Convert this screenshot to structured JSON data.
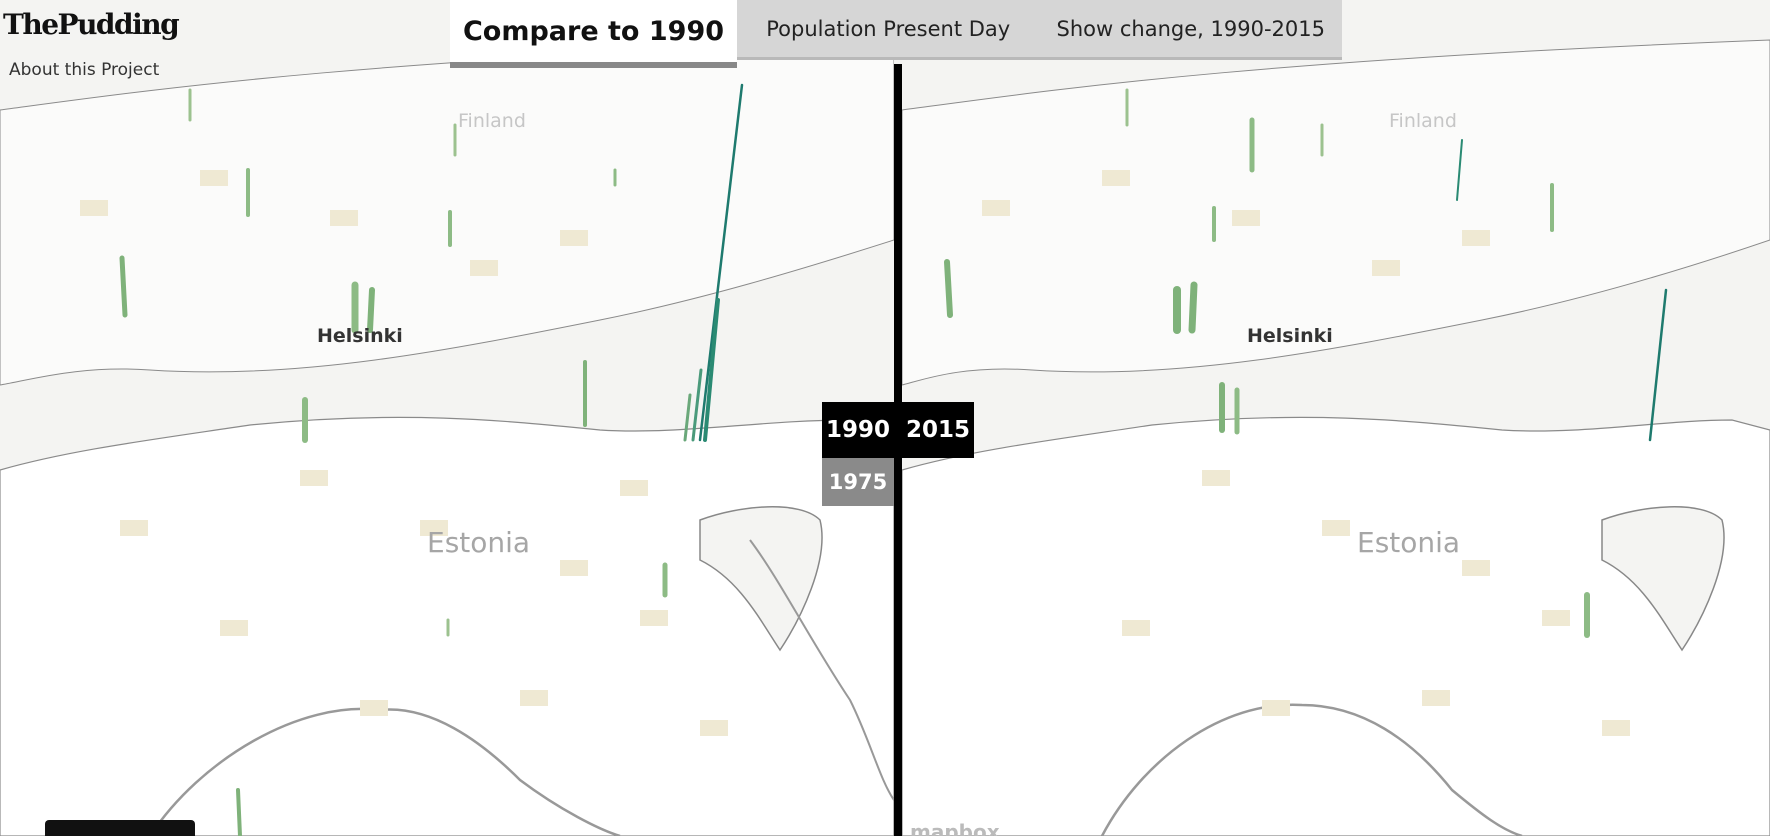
{
  "brand": {
    "logo": "ThePudding",
    "about_link": "About this Project"
  },
  "tabs": {
    "active": "Compare to 1990",
    "options": [
      "Population Present Day",
      "Show change, 1990-2015"
    ]
  },
  "compare": {
    "left_year": "1990",
    "right_year": "2015",
    "previous_year": "1975"
  },
  "map": {
    "labels": {
      "country_top": "Finland",
      "city": "Helsinki",
      "country_main": "Estonia"
    },
    "attribution": "mapbox",
    "colors": {
      "land": "#ffffff",
      "water": "#f4f4f2",
      "spike": "#7fb27a",
      "spike_tall": "#1e7a6e",
      "grid": "#ece4cd"
    }
  }
}
